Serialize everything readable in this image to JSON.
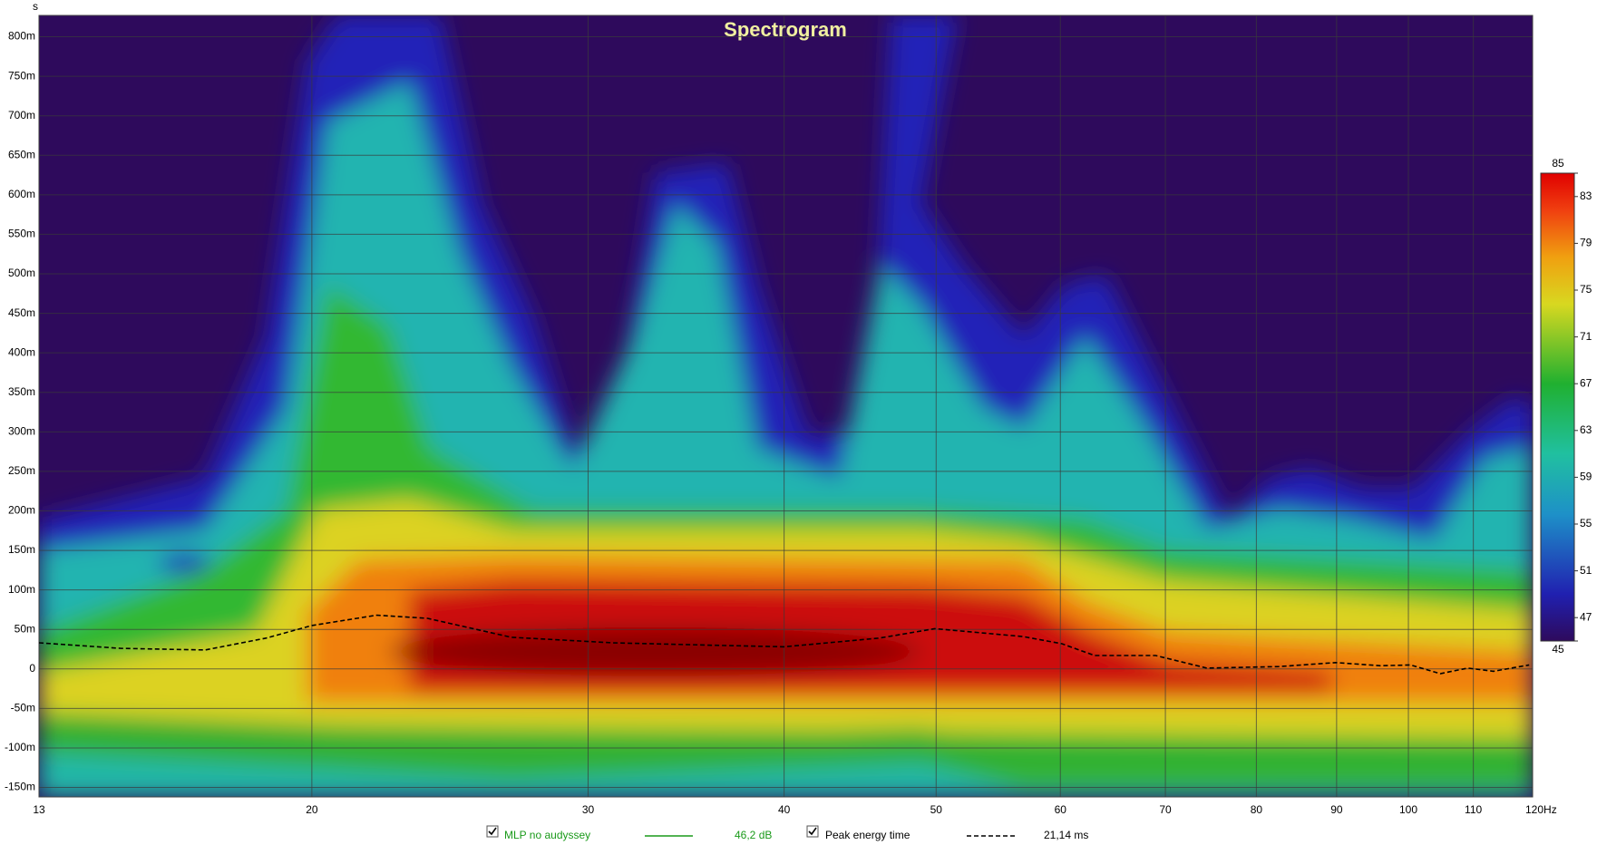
{
  "chart_data": {
    "type": "spectrogram",
    "title": "Spectrogram",
    "y_label": "s",
    "xscale": "log",
    "xlim": [
      13.4,
      120
    ],
    "xticks": [
      {
        "value": 13.4,
        "label": "13"
      },
      20,
      30,
      40,
      50,
      60,
      70,
      80,
      90,
      100,
      110,
      {
        "value": 120,
        "label": "120Hz"
      }
    ],
    "ylim": [
      -0.162,
      0.827
    ],
    "yticks": [
      {
        "value": -0.15,
        "label": "-150m"
      },
      {
        "value": -0.1,
        "label": "-100m"
      },
      {
        "value": -0.05,
        "label": "-50m"
      },
      0,
      {
        "value": 0.05,
        "label": "50m"
      },
      {
        "value": 0.1,
        "label": "100m"
      },
      {
        "value": 0.15,
        "label": "150m"
      },
      {
        "value": 0.2,
        "label": "200m"
      },
      {
        "value": 0.25,
        "label": "250m"
      },
      {
        "value": 0.3,
        "label": "300m"
      },
      {
        "value": 0.35,
        "label": "350m"
      },
      {
        "value": 0.4,
        "label": "400m"
      },
      {
        "value": 0.45,
        "label": "450m"
      },
      {
        "value": 0.5,
        "label": "500m"
      },
      {
        "value": 0.55,
        "label": "550m"
      },
      {
        "value": 0.6,
        "label": "600m"
      },
      {
        "value": 0.65,
        "label": "650m"
      },
      {
        "value": 0.7,
        "label": "700m"
      },
      {
        "value": 0.75,
        "label": "750m"
      },
      {
        "value": 0.8,
        "label": "800m"
      }
    ],
    "grid": true,
    "clim": [
      45,
      85
    ],
    "cticks": [
      45,
      47,
      51,
      55,
      59,
      63,
      67,
      71,
      75,
      79,
      83,
      85
    ],
    "series": [
      {
        "name": "MLP no audyssey",
        "color": "#1a9a1a",
        "readout": "46,2 dB"
      },
      {
        "name": "Peak energy time",
        "color": "#000000",
        "dashed": true,
        "readout": "21,14 ms",
        "x": [
          13.4,
          15.1,
          17.1,
          18.7,
          20,
          22,
          23.7,
          26.8,
          31.1,
          36.1,
          40,
          46,
          49.9,
          56.8,
          60.1,
          63.1,
          69,
          74.4,
          82.7,
          89.9,
          96,
          100.3,
          104.8,
          109.1,
          113.3,
          119.4
        ],
        "values": [
          0.033,
          0.026,
          0.024,
          0.039,
          0.055,
          0.068,
          0.064,
          0.04,
          0.033,
          0.03,
          0.028,
          0.039,
          0.051,
          0.041,
          0.032,
          0.017,
          0.017,
          0.001,
          0.003,
          0.008,
          0.004,
          0.005,
          -0.006,
          0.001,
          -0.003,
          0.005
        ]
      }
    ]
  }
}
